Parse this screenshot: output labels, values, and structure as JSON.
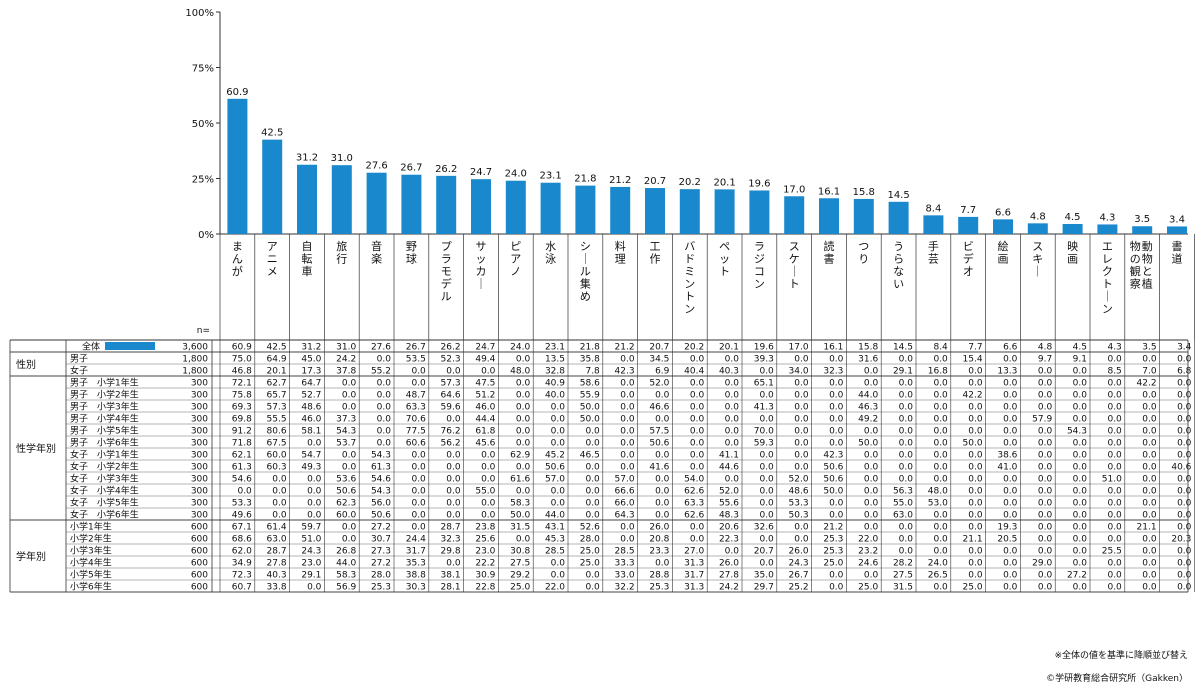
{
  "chart_data": {
    "type": "bar",
    "ylim": [
      0,
      100
    ],
    "yticks": [
      "0%",
      "25%",
      "50%",
      "75%",
      "100%"
    ],
    "bar_color": "#1a88cc",
    "categories": [
      "まんが",
      "アニメ",
      "自転車",
      "旅行",
      "音楽",
      "野球",
      "プラモデル",
      "サッカー",
      "ピアノ",
      "水泳",
      "シール集め",
      "料理",
      "工作",
      "バドミントン",
      "ペット",
      "ラジコン",
      "スケート",
      "読書",
      "つり",
      "うらない",
      "手芸",
      "ビデオ",
      "絵画",
      "スキー",
      "映画",
      "エレクトーン",
      "動物と植物の観察",
      "書道"
    ],
    "values": [
      60.9,
      42.5,
      31.2,
      31.0,
      27.6,
      26.7,
      26.2,
      24.7,
      24.0,
      23.1,
      21.8,
      21.2,
      20.7,
      20.2,
      20.1,
      19.6,
      17.0,
      16.1,
      15.8,
      14.5,
      8.4,
      7.7,
      6.6,
      4.8,
      4.5,
      4.3,
      3.5,
      3.4
    ],
    "value_labels": [
      "60.9",
      "42.5",
      "31.2",
      "31.0",
      "27.6",
      "26.7",
      "26.2",
      "24.7",
      "24.0",
      "23.1",
      "21.8",
      "21.2",
      "20.7",
      "20.2",
      "20.1",
      "19.6",
      "17.0",
      "16.1",
      "15.8",
      "14.5",
      "8.4",
      "7.7",
      "6.6",
      "4.8",
      "4.5",
      "4.3",
      "3.5",
      "3.4"
    ],
    "table": {
      "n_header": "n=",
      "groups": [
        {
          "label": "",
          "rows": [
            {
              "label": "全体",
              "n": "3,600",
              "highlight": true,
              "cells": [
                "60.9",
                "42.5",
                "31.2",
                "31.0",
                "27.6",
                "26.7",
                "26.2",
                "24.7",
                "24.0",
                "23.1",
                "21.8",
                "21.2",
                "20.7",
                "20.2",
                "20.1",
                "19.6",
                "17.0",
                "16.1",
                "15.8",
                "14.5",
                "8.4",
                "7.7",
                "6.6",
                "4.8",
                "4.5",
                "4.3",
                "3.5",
                "3.4"
              ]
            }
          ]
        },
        {
          "label": "性別",
          "rows": [
            {
              "label": "男子",
              "n": "1,800",
              "cells": [
                "75.0",
                "64.9",
                "45.0",
                "24.2",
                "0.0",
                "53.5",
                "52.3",
                "49.4",
                "0.0",
                "13.5",
                "35.8",
                "0.0",
                "34.5",
                "0.0",
                "0.0",
                "39.3",
                "0.0",
                "0.0",
                "31.6",
                "0.0",
                "0.0",
                "15.4",
                "0.0",
                "9.7",
                "9.1",
                "0.0",
                "0.0",
                "0.0"
              ]
            },
            {
              "label": "女子",
              "n": "1,800",
              "cells": [
                "46.8",
                "20.1",
                "17.3",
                "37.8",
                "55.2",
                "0.0",
                "0.0",
                "0.0",
                "48.0",
                "32.8",
                "7.8",
                "42.3",
                "6.9",
                "40.4",
                "40.3",
                "0.0",
                "34.0",
                "32.3",
                "0.0",
                "29.1",
                "16.8",
                "0.0",
                "13.3",
                "0.0",
                "0.0",
                "8.5",
                "7.0",
                "6.8"
              ]
            }
          ]
        },
        {
          "label": "性学年別",
          "rows": [
            {
              "label": "男子　小学1年生",
              "n": "300",
              "cells": [
                "72.1",
                "62.7",
                "64.7",
                "0.0",
                "0.0",
                "0.0",
                "57.3",
                "47.5",
                "0.0",
                "40.9",
                "58.6",
                "0.0",
                "52.0",
                "0.0",
                "0.0",
                "65.1",
                "0.0",
                "0.0",
                "0.0",
                "0.0",
                "0.0",
                "0.0",
                "0.0",
                "0.0",
                "0.0",
                "0.0",
                "42.2",
                "0.0"
              ]
            },
            {
              "label": "男子　小学2年生",
              "n": "300",
              "cells": [
                "75.8",
                "65.7",
                "52.7",
                "0.0",
                "0.0",
                "48.7",
                "64.6",
                "51.2",
                "0.0",
                "40.0",
                "55.9",
                "0.0",
                "0.0",
                "0.0",
                "0.0",
                "0.0",
                "0.0",
                "0.0",
                "44.0",
                "0.0",
                "0.0",
                "42.2",
                "0.0",
                "0.0",
                "0.0",
                "0.0",
                "0.0",
                "0.0"
              ]
            },
            {
              "label": "男子　小学3年生",
              "n": "300",
              "cells": [
                "69.3",
                "57.3",
                "48.6",
                "0.0",
                "0.0",
                "63.3",
                "59.6",
                "46.0",
                "0.0",
                "0.0",
                "50.0",
                "0.0",
                "46.6",
                "0.0",
                "0.0",
                "41.3",
                "0.0",
                "0.0",
                "46.3",
                "0.0",
                "0.0",
                "0.0",
                "0.0",
                "0.0",
                "0.0",
                "0.0",
                "0.0",
                "0.0"
              ]
            },
            {
              "label": "男子　小学4年生",
              "n": "300",
              "cells": [
                "69.8",
                "55.5",
                "46.0",
                "37.3",
                "0.0",
                "70.6",
                "0.0",
                "44.4",
                "0.0",
                "0.0",
                "50.0",
                "0.0",
                "0.0",
                "0.0",
                "0.0",
                "0.0",
                "0.0",
                "0.0",
                "49.2",
                "0.0",
                "0.0",
                "0.0",
                "0.0",
                "57.9",
                "0.0",
                "0.0",
                "0.0",
                "0.0"
              ]
            },
            {
              "label": "男子　小学5年生",
              "n": "300",
              "cells": [
                "91.2",
                "80.6",
                "58.1",
                "54.3",
                "0.0",
                "77.5",
                "76.2",
                "61.8",
                "0.0",
                "0.0",
                "0.0",
                "0.0",
                "57.5",
                "0.0",
                "0.0",
                "70.0",
                "0.0",
                "0.0",
                "0.0",
                "0.0",
                "0.0",
                "0.0",
                "0.0",
                "0.0",
                "54.3",
                "0.0",
                "0.0",
                "0.0"
              ]
            },
            {
              "label": "男子　小学6年生",
              "n": "300",
              "cells": [
                "71.8",
                "67.5",
                "0.0",
                "53.7",
                "0.0",
                "60.6",
                "56.2",
                "45.6",
                "0.0",
                "0.0",
                "0.0",
                "0.0",
                "50.6",
                "0.0",
                "0.0",
                "59.3",
                "0.0",
                "0.0",
                "50.0",
                "0.0",
                "0.0",
                "50.0",
                "0.0",
                "0.0",
                "0.0",
                "0.0",
                "0.0",
                "0.0"
              ]
            },
            {
              "label": "女子　小学1年生",
              "n": "300",
              "cells": [
                "62.1",
                "60.0",
                "54.7",
                "0.0",
                "54.3",
                "0.0",
                "0.0",
                "0.0",
                "62.9",
                "45.2",
                "46.5",
                "0.0",
                "0.0",
                "0.0",
                "41.1",
                "0.0",
                "0.0",
                "42.3",
                "0.0",
                "0.0",
                "0.0",
                "0.0",
                "38.6",
                "0.0",
                "0.0",
                "0.0",
                "0.0",
                "0.0"
              ]
            },
            {
              "label": "女子　小学2年生",
              "n": "300",
              "cells": [
                "61.3",
                "60.3",
                "49.3",
                "0.0",
                "61.3",
                "0.0",
                "0.0",
                "0.0",
                "0.0",
                "50.6",
                "0.0",
                "0.0",
                "41.6",
                "0.0",
                "44.6",
                "0.0",
                "0.0",
                "50.6",
                "0.0",
                "0.0",
                "0.0",
                "0.0",
                "41.0",
                "0.0",
                "0.0",
                "0.0",
                "0.0",
                "40.6"
              ]
            },
            {
              "label": "女子　小学3年生",
              "n": "300",
              "cells": [
                "54.6",
                "0.0",
                "0.0",
                "53.6",
                "54.6",
                "0.0",
                "0.0",
                "0.0",
                "61.6",
                "57.0",
                "0.0",
                "57.0",
                "0.0",
                "54.0",
                "0.0",
                "0.0",
                "52.0",
                "50.6",
                "0.0",
                "0.0",
                "0.0",
                "0.0",
                "0.0",
                "0.0",
                "0.0",
                "51.0",
                "0.0",
                "0.0"
              ]
            },
            {
              "label": "女子　小学4年生",
              "n": "300",
              "cells": [
                "0.0",
                "0.0",
                "0.0",
                "50.6",
                "54.3",
                "0.0",
                "0.0",
                "55.0",
                "0.0",
                "0.0",
                "0.0",
                "66.6",
                "0.0",
                "62.6",
                "52.0",
                "0.0",
                "48.6",
                "50.0",
                "0.0",
                "56.3",
                "48.0",
                "0.0",
                "0.0",
                "0.0",
                "0.0",
                "0.0",
                "0.0",
                "0.0"
              ]
            },
            {
              "label": "女子　小学5年生",
              "n": "300",
              "cells": [
                "53.3",
                "0.0",
                "0.0",
                "62.3",
                "56.0",
                "0.0",
                "0.0",
                "0.0",
                "58.3",
                "0.0",
                "0.0",
                "66.0",
                "0.0",
                "63.3",
                "55.6",
                "0.0",
                "53.3",
                "0.0",
                "0.0",
                "55.0",
                "53.0",
                "0.0",
                "0.0",
                "0.0",
                "0.0",
                "0.0",
                "0.0",
                "0.0"
              ]
            },
            {
              "label": "女子　小学6年生",
              "n": "300",
              "cells": [
                "49.6",
                "0.0",
                "0.0",
                "60.0",
                "50.6",
                "0.0",
                "0.0",
                "0.0",
                "50.0",
                "44.0",
                "0.0",
                "64.3",
                "0.0",
                "62.6",
                "48.3",
                "0.0",
                "50.3",
                "0.0",
                "0.0",
                "63.0",
                "0.0",
                "0.0",
                "0.0",
                "0.0",
                "0.0",
                "0.0",
                "0.0",
                "0.0"
              ]
            }
          ]
        },
        {
          "label": "学年別",
          "rows": [
            {
              "label": "小学1年生",
              "n": "600",
              "cells": [
                "67.1",
                "61.4",
                "59.7",
                "0.0",
                "27.2",
                "0.0",
                "28.7",
                "23.8",
                "31.5",
                "43.1",
                "52.6",
                "0.0",
                "26.0",
                "0.0",
                "20.6",
                "32.6",
                "0.0",
                "21.2",
                "0.0",
                "0.0",
                "0.0",
                "0.0",
                "19.3",
                "0.0",
                "0.0",
                "0.0",
                "21.1",
                "0.0"
              ]
            },
            {
              "label": "小学2年生",
              "n": "600",
              "cells": [
                "68.6",
                "63.0",
                "51.0",
                "0.0",
                "30.7",
                "24.4",
                "32.3",
                "25.6",
                "0.0",
                "45.3",
                "28.0",
                "0.0",
                "20.8",
                "0.0",
                "22.3",
                "0.0",
                "0.0",
                "25.3",
                "22.0",
                "0.0",
                "0.0",
                "21.1",
                "20.5",
                "0.0",
                "0.0",
                "0.0",
                "0.0",
                "20.3"
              ]
            },
            {
              "label": "小学3年生",
              "n": "600",
              "cells": [
                "62.0",
                "28.7",
                "24.3",
                "26.8",
                "27.3",
                "31.7",
                "29.8",
                "23.0",
                "30.8",
                "28.5",
                "25.0",
                "28.5",
                "23.3",
                "27.0",
                "0.0",
                "20.7",
                "26.0",
                "25.3",
                "23.2",
                "0.0",
                "0.0",
                "0.0",
                "0.0",
                "0.0",
                "0.0",
                "25.5",
                "0.0",
                "0.0"
              ]
            },
            {
              "label": "小学4年生",
              "n": "600",
              "cells": [
                "34.9",
                "27.8",
                "23.0",
                "44.0",
                "27.2",
                "35.3",
                "0.0",
                "22.2",
                "27.5",
                "0.0",
                "25.0",
                "33.3",
                "0.0",
                "31.3",
                "26.0",
                "0.0",
                "24.3",
                "25.0",
                "24.6",
                "28.2",
                "24.0",
                "0.0",
                "0.0",
                "29.0",
                "0.0",
                "0.0",
                "0.0",
                "0.0"
              ]
            },
            {
              "label": "小学5年生",
              "n": "600",
              "cells": [
                "72.3",
                "40.3",
                "29.1",
                "58.3",
                "28.0",
                "38.8",
                "38.1",
                "30.9",
                "29.2",
                "0.0",
                "0.0",
                "33.0",
                "28.8",
                "31.7",
                "27.8",
                "35.0",
                "26.7",
                "0.0",
                "0.0",
                "27.5",
                "26.5",
                "0.0",
                "0.0",
                "0.0",
                "27.2",
                "0.0",
                "0.0",
                "0.0"
              ]
            },
            {
              "label": "小学6年生",
              "n": "600",
              "cells": [
                "60.7",
                "33.8",
                "0.0",
                "56.9",
                "25.3",
                "30.3",
                "28.1",
                "22.8",
                "25.0",
                "22.0",
                "0.0",
                "32.2",
                "25.3",
                "31.3",
                "24.2",
                "29.7",
                "25.2",
                "0.0",
                "25.0",
                "31.5",
                "0.0",
                "25.0",
                "0.0",
                "0.0",
                "0.0",
                "0.0",
                "0.0",
                "0.0"
              ]
            }
          ]
        }
      ]
    },
    "note": "※全体の値を基準に降順並び替え",
    "credit": "©学研教育総合研究所（Gakken）"
  }
}
